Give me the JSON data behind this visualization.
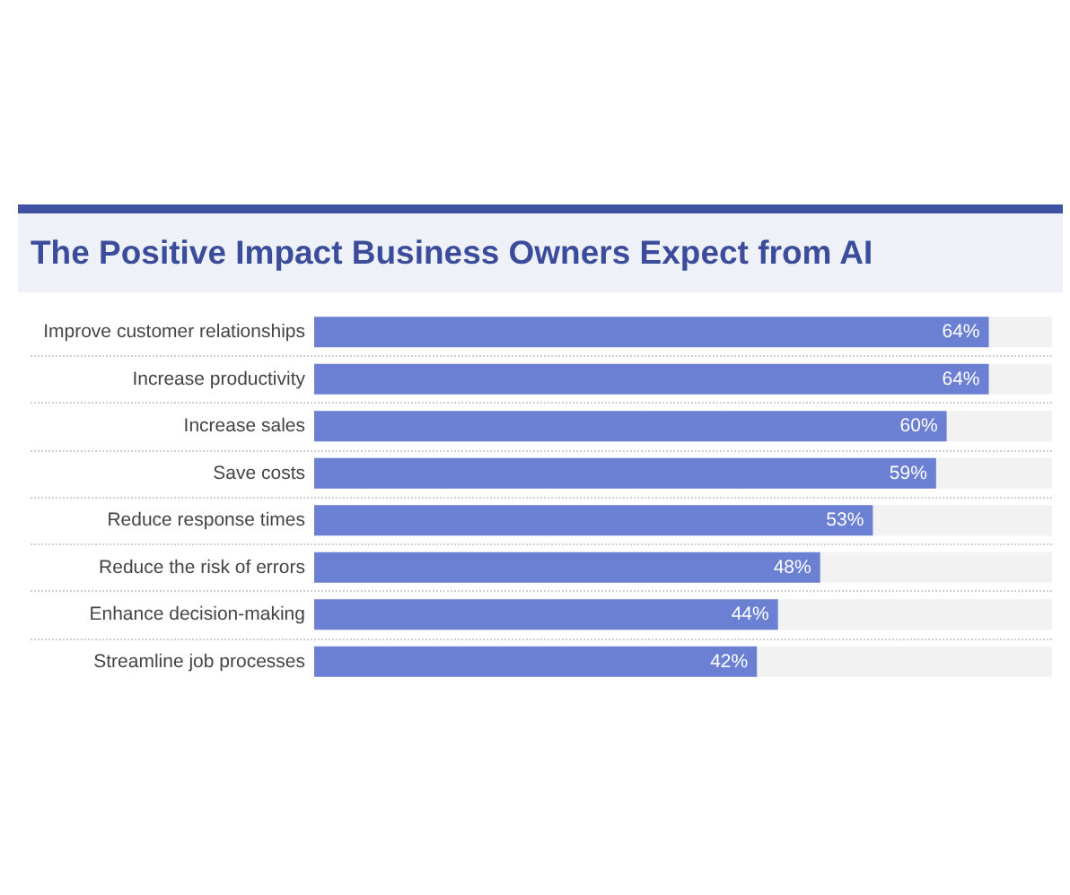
{
  "chart_data": {
    "type": "bar",
    "orientation": "horizontal",
    "title": "The Positive Impact Business Owners Expect from AI",
    "categories": [
      "Improve customer relationships",
      "Increase productivity",
      "Increase sales",
      "Save costs",
      "Reduce response times",
      "Reduce the risk of errors",
      "Enhance decision-making",
      "Streamline job processes"
    ],
    "values": [
      64,
      64,
      60,
      59,
      53,
      48,
      44,
      42
    ],
    "value_labels": [
      "64%",
      "64%",
      "60%",
      "59%",
      "53%",
      "48%",
      "44%",
      "42%"
    ],
    "color": "#6b7fd3",
    "grid": "y"
  }
}
